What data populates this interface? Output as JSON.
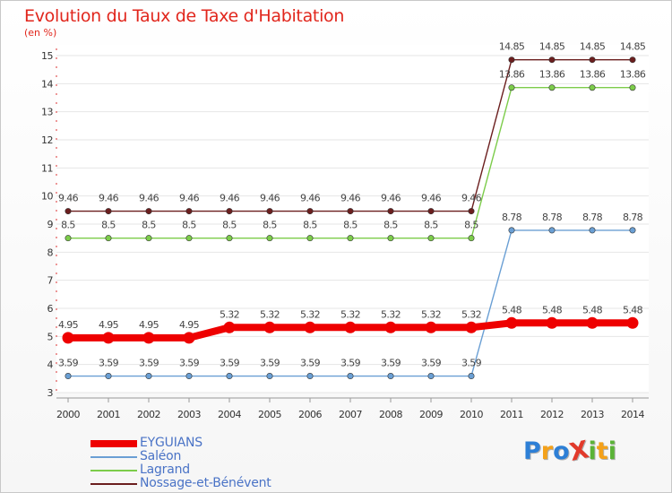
{
  "title": "Evolution du Taux de Taxe d'Habitation",
  "subtitle": "(en %)",
  "logo": {
    "text": "ProXiti",
    "letters": [
      {
        "ch": "P",
        "color": "#2d7fd6"
      },
      {
        "ch": "r",
        "color": "#f4a11a"
      },
      {
        "ch": "o",
        "color": "#2d7fd6"
      },
      {
        "ch": "X",
        "color": "#e23a2b"
      },
      {
        "ch": "i",
        "color": "#5bb337"
      },
      {
        "ch": "t",
        "color": "#f4a11a"
      },
      {
        "ch": "i",
        "color": "#5bb337"
      }
    ]
  },
  "chart_data": {
    "type": "line",
    "x": [
      "2000",
      "2001",
      "2002",
      "2003",
      "2004",
      "2005",
      "2006",
      "2007",
      "2008",
      "2009",
      "2010",
      "2011",
      "2012",
      "2013",
      "2014"
    ],
    "ylim": [
      3,
      15
    ],
    "yticks": [
      "3",
      "4",
      "5",
      "6",
      "7",
      "8",
      "9",
      "10",
      "11",
      "12",
      "13",
      "14",
      "15"
    ],
    "series": [
      {
        "name": "Nossage-et-Bénévent",
        "color": "#6b1e1e",
        "values": [
          9.46,
          9.46,
          9.46,
          9.46,
          9.46,
          9.46,
          9.46,
          9.46,
          9.46,
          9.46,
          9.46,
          14.85,
          14.85,
          14.85,
          14.85
        ],
        "labels": [
          "9.46",
          "9.46",
          "9.46",
          "9.46",
          "9.46",
          "9.46",
          "9.46",
          "9.46",
          "9.46",
          "9.46",
          "9.46",
          "14.85",
          "14.85",
          "14.85",
          "14.85"
        ]
      },
      {
        "name": "Lagrand",
        "color": "#7ccc4a",
        "values": [
          8.5,
          8.5,
          8.5,
          8.5,
          8.5,
          8.5,
          8.5,
          8.5,
          8.5,
          8.5,
          8.5,
          13.86,
          13.86,
          13.86,
          13.86
        ],
        "labels": [
          "8.5",
          "8.5",
          "8.5",
          "8.5",
          "8.5",
          "8.5",
          "8.5",
          "8.5",
          "8.5",
          "8.5",
          "8.5",
          "13.86",
          "13.86",
          "13.86",
          "13.86"
        ]
      },
      {
        "name": "Saléon",
        "color": "#6a9fd4",
        "values": [
          3.59,
          3.59,
          3.59,
          3.59,
          3.59,
          3.59,
          3.59,
          3.59,
          3.59,
          3.59,
          3.59,
          8.78,
          8.78,
          8.78,
          8.78
        ],
        "labels": [
          "3.59",
          "3.59",
          "3.59",
          "3.59",
          "3.59",
          "3.59",
          "3.59",
          "3.59",
          "3.59",
          "3.59",
          "3.59",
          "8.78",
          "8.78",
          "8.78",
          "8.78"
        ]
      },
      {
        "name": "EYGUIANS",
        "color": "#ee0000",
        "values": [
          4.95,
          4.95,
          4.95,
          4.95,
          5.32,
          5.32,
          5.32,
          5.32,
          5.32,
          5.32,
          5.32,
          5.48,
          5.48,
          5.48,
          5.48
        ],
        "labels": [
          "4.95",
          "4.95",
          "4.95",
          "4.95",
          "5.32",
          "5.32",
          "5.32",
          "5.32",
          "5.32",
          "5.32",
          "5.32",
          "5.48",
          "5.48",
          "5.48",
          "5.48"
        ]
      }
    ],
    "legend": [
      "EYGUIANS",
      "Saléon",
      "Lagrand",
      "Nossage-et-Bénévent"
    ]
  }
}
